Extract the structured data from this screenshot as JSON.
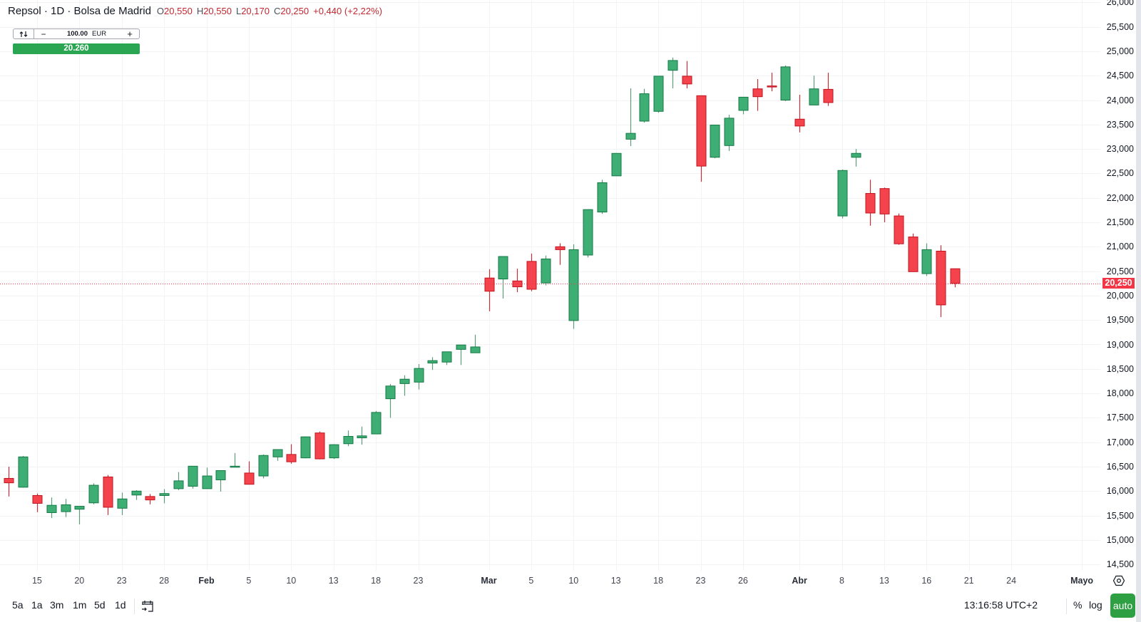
{
  "header": {
    "title": "Repsol · 1D · Bolsa de Madrid",
    "ohlc": [
      {
        "label": "O",
        "value": "20,550"
      },
      {
        "label": "H",
        "value": "20,550"
      },
      {
        "label": "L",
        "value": "20,170"
      },
      {
        "label": "C",
        "value": "20,250"
      }
    ],
    "change": "+0,440 (+2,22%)"
  },
  "order_widget": {
    "swap_icon": "swap-arrows-icon",
    "minus": "−",
    "quantity": "100.00",
    "currency": "EUR",
    "plus": "+",
    "price": "20.260"
  },
  "price_axis": {
    "current_price": "20,250"
  },
  "time_axis": {
    "settings_icon": "scale-settings-icon"
  },
  "toolbar": {
    "ranges": [
      "5a",
      "1a",
      "3m",
      "1m",
      "5d",
      "1d"
    ],
    "calendar_icon": "go-to-date-icon",
    "clock": "13:16:58 UTC+2",
    "percent": "%",
    "log": "log",
    "auto": "auto"
  },
  "colors": {
    "up_fill": "#3fae75",
    "up_border": "#157a46",
    "up_wick": "#5c9c78",
    "down_fill": "#f5434d",
    "down_border": "#c0141e",
    "down_wick": "#c3303a",
    "grid": "#f1f3f6",
    "last_price": "#f23645",
    "auto_button": "#2ea043"
  },
  "chart_data": {
    "type": "candlestick",
    "title": "Repsol · 1D · Bolsa de Madrid",
    "xlabel": "",
    "ylabel": "EUR",
    "ylim": [
      14.5,
      26.0
    ],
    "grid": true,
    "last_price": 20.25,
    "y_ticks": [
      {
        "value": 26.0,
        "text": "26,000"
      },
      {
        "value": 25.5,
        "text": "25,500"
      },
      {
        "value": 25.0,
        "text": "25,000"
      },
      {
        "value": 24.5,
        "text": "24,500"
      },
      {
        "value": 24.0,
        "text": "24,000"
      },
      {
        "value": 23.5,
        "text": "23,500"
      },
      {
        "value": 23.0,
        "text": "23,000"
      },
      {
        "value": 22.5,
        "text": "22,500"
      },
      {
        "value": 22.0,
        "text": "22,000"
      },
      {
        "value": 21.5,
        "text": "21,500"
      },
      {
        "value": 21.0,
        "text": "21,000"
      },
      {
        "value": 20.5,
        "text": "20,500"
      },
      {
        "value": 20.0,
        "text": "20,000"
      },
      {
        "value": 19.5,
        "text": "19,500"
      },
      {
        "value": 19.0,
        "text": "19,000"
      },
      {
        "value": 18.5,
        "text": "18,500"
      },
      {
        "value": 18.0,
        "text": "18,000"
      },
      {
        "value": 17.5,
        "text": "17,500"
      },
      {
        "value": 17.0,
        "text": "17,000"
      },
      {
        "value": 16.5,
        "text": "16,500"
      },
      {
        "value": 16.0,
        "text": "16,000"
      },
      {
        "value": 15.5,
        "text": "15,500"
      },
      {
        "value": 15.0,
        "text": "15,000"
      },
      {
        "value": 14.5,
        "text": "14,500"
      }
    ],
    "x_ticks": [
      {
        "index": 2,
        "text": "15",
        "bold": false
      },
      {
        "index": 5,
        "text": "20",
        "bold": false
      },
      {
        "index": 8,
        "text": "23",
        "bold": false
      },
      {
        "index": 11,
        "text": "28",
        "bold": false
      },
      {
        "index": 14,
        "text": "Feb",
        "bold": true
      },
      {
        "index": 17,
        "text": "5",
        "bold": false
      },
      {
        "index": 20,
        "text": "10",
        "bold": false
      },
      {
        "index": 23,
        "text": "13",
        "bold": false
      },
      {
        "index": 26,
        "text": "18",
        "bold": false
      },
      {
        "index": 29,
        "text": "23",
        "bold": false
      },
      {
        "index": 34,
        "text": "Mar",
        "bold": true
      },
      {
        "index": 37,
        "text": "5",
        "bold": false
      },
      {
        "index": 40,
        "text": "10",
        "bold": false
      },
      {
        "index": 43,
        "text": "13",
        "bold": false
      },
      {
        "index": 46,
        "text": "18",
        "bold": false
      },
      {
        "index": 49,
        "text": "23",
        "bold": false
      },
      {
        "index": 52,
        "text": "26",
        "bold": false
      },
      {
        "index": 56,
        "text": "Abr",
        "bold": true
      },
      {
        "index": 59,
        "text": "8",
        "bold": false
      },
      {
        "index": 62,
        "text": "13",
        "bold": false
      },
      {
        "index": 65,
        "text": "16",
        "bold": false
      },
      {
        "index": 68,
        "text": "21",
        "bold": false
      },
      {
        "index": 71,
        "text": "24",
        "bold": false
      },
      {
        "index": 76,
        "text": "Mayo",
        "bold": true
      }
    ],
    "ohlc_fields": [
      "open",
      "high",
      "low",
      "close"
    ],
    "ohlc": [
      [
        16.26,
        16.5,
        15.89,
        16.17
      ],
      [
        16.08,
        16.72,
        16.07,
        16.7
      ],
      [
        15.91,
        15.95,
        15.57,
        15.75
      ],
      [
        15.56,
        15.87,
        15.45,
        15.71
      ],
      [
        15.58,
        15.84,
        15.47,
        15.72
      ],
      [
        15.63,
        15.69,
        15.32,
        15.69
      ],
      [
        15.76,
        16.16,
        15.73,
        16.12
      ],
      [
        16.29,
        16.33,
        15.51,
        15.67
      ],
      [
        15.65,
        15.97,
        15.51,
        15.84
      ],
      [
        15.92,
        16.02,
        15.82,
        16.0
      ],
      [
        15.89,
        15.94,
        15.73,
        15.82
      ],
      [
        15.91,
        16.04,
        15.75,
        15.95
      ],
      [
        16.05,
        16.39,
        16.02,
        16.21
      ],
      [
        16.1,
        16.51,
        16.05,
        16.51
      ],
      [
        16.05,
        16.48,
        16.05,
        16.31
      ],
      [
        16.23,
        16.42,
        15.99,
        16.42
      ],
      [
        16.5,
        16.78,
        16.49,
        16.51
      ],
      [
        16.37,
        16.61,
        16.14,
        16.14
      ],
      [
        16.31,
        16.75,
        16.26,
        16.73
      ],
      [
        16.7,
        16.85,
        16.62,
        16.85
      ],
      [
        16.75,
        16.96,
        16.56,
        16.6
      ],
      [
        16.68,
        17.12,
        16.67,
        17.11
      ],
      [
        17.19,
        17.22,
        16.65,
        16.66
      ],
      [
        16.68,
        16.96,
        16.66,
        16.95
      ],
      [
        16.97,
        17.24,
        16.92,
        17.12
      ],
      [
        17.09,
        17.32,
        16.95,
        17.13
      ],
      [
        17.17,
        17.64,
        17.17,
        17.61
      ],
      [
        17.89,
        18.19,
        17.5,
        18.15
      ],
      [
        18.2,
        18.37,
        17.95,
        18.29
      ],
      [
        18.23,
        18.6,
        18.08,
        18.51
      ],
      [
        18.62,
        18.74,
        18.48,
        18.67
      ],
      [
        18.64,
        18.85,
        18.58,
        18.85
      ],
      [
        18.9,
        18.99,
        18.58,
        18.99
      ],
      [
        18.83,
        19.2,
        18.83,
        18.95
      ],
      [
        20.36,
        20.54,
        19.68,
        20.09
      ],
      [
        20.34,
        20.8,
        19.94,
        20.8
      ],
      [
        20.3,
        20.55,
        20.07,
        20.18
      ],
      [
        20.7,
        20.86,
        20.09,
        20.13
      ],
      [
        20.26,
        20.82,
        20.21,
        20.75
      ],
      [
        21.0,
        21.07,
        20.63,
        20.94
      ],
      [
        19.49,
        21.05,
        19.32,
        20.94
      ],
      [
        20.83,
        21.76,
        20.78,
        21.76
      ],
      [
        21.71,
        22.37,
        21.67,
        22.31
      ],
      [
        22.45,
        22.91,
        22.45,
        22.91
      ],
      [
        23.2,
        24.24,
        23.06,
        23.32
      ],
      [
        23.57,
        24.23,
        23.54,
        24.13
      ],
      [
        23.77,
        24.49,
        23.74,
        24.49
      ],
      [
        24.61,
        24.87,
        24.24,
        24.81
      ],
      [
        24.49,
        24.8,
        24.24,
        24.33
      ],
      [
        24.09,
        24.09,
        22.33,
        22.65
      ],
      [
        22.83,
        23.49,
        22.81,
        23.49
      ],
      [
        23.07,
        23.7,
        22.96,
        23.63
      ],
      [
        23.79,
        24.06,
        23.71,
        24.06
      ],
      [
        24.23,
        24.43,
        23.78,
        24.07
      ],
      [
        24.29,
        24.56,
        24.18,
        24.28
      ],
      [
        24.0,
        24.71,
        23.98,
        24.68
      ],
      [
        23.61,
        24.11,
        23.34,
        23.47
      ],
      [
        23.9,
        24.5,
        23.9,
        24.23
      ],
      [
        24.22,
        24.56,
        23.88,
        23.95
      ],
      [
        21.63,
        22.58,
        21.58,
        22.56
      ],
      [
        22.83,
        23.0,
        22.64,
        22.91
      ],
      [
        22.09,
        22.37,
        21.43,
        21.69
      ],
      [
        22.19,
        22.21,
        21.5,
        21.67
      ],
      [
        21.63,
        21.68,
        21.04,
        21.06
      ],
      [
        21.2,
        21.27,
        20.49,
        20.49
      ],
      [
        20.45,
        21.07,
        20.4,
        20.94
      ],
      [
        20.91,
        21.03,
        19.56,
        19.81
      ],
      [
        20.55,
        20.55,
        20.17,
        20.25
      ]
    ]
  }
}
